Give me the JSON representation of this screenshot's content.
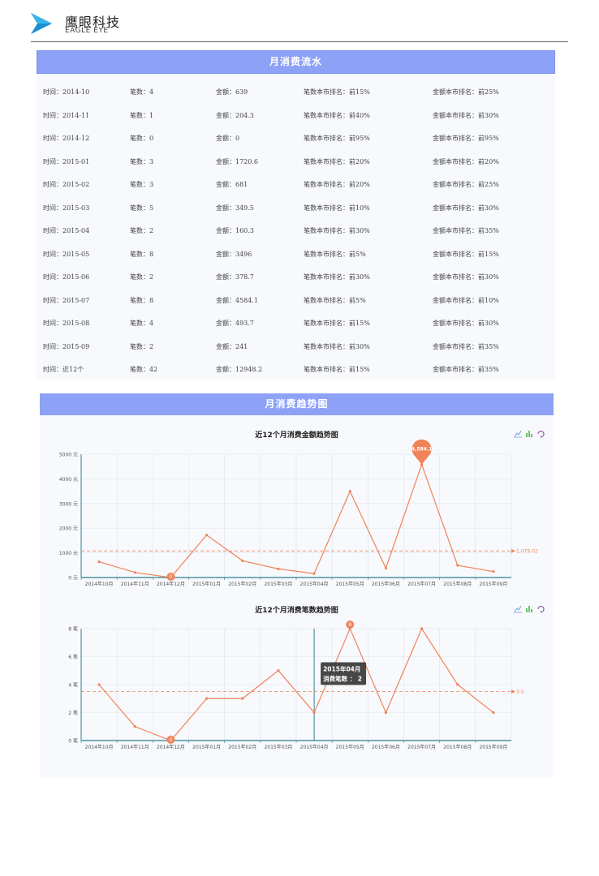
{
  "brand": {
    "name_cn": "鹰眼科技",
    "name_en": "EAGLE EYE"
  },
  "flow": {
    "title": "月消费流水",
    "rows": [
      {
        "time": "时间：2014-10",
        "count": "笔数：4",
        "amount": "金额：639",
        "count_rank": "笔数本市排名：前15%",
        "amount_rank": "金额本市排名：前25%"
      },
      {
        "time": "时间：2014-11",
        "count": "笔数：1",
        "amount": "金额：204.3",
        "count_rank": "笔数本市排名：前40%",
        "amount_rank": "金额本市排名：前30%"
      },
      {
        "time": "时间：2014-12",
        "count": "笔数：0",
        "amount": "金额：0",
        "count_rank": "笔数本市排名：前95%",
        "amount_rank": "金额本市排名：前95%"
      },
      {
        "time": "时间：2015-01",
        "count": "笔数：3",
        "amount": "金额：1720.6",
        "count_rank": "笔数本市排名：前20%",
        "amount_rank": "金额本市排名：前20%"
      },
      {
        "time": "时间：2015-02",
        "count": "笔数：3",
        "amount": "金额：681",
        "count_rank": "笔数本市排名：前20%",
        "amount_rank": "金额本市排名：前25%"
      },
      {
        "time": "时间：2015-03",
        "count": "笔数：5",
        "amount": "金额：349.5",
        "count_rank": "笔数本市排名：前10%",
        "amount_rank": "金额本市排名：前30%"
      },
      {
        "time": "时间：2015-04",
        "count": "笔数：2",
        "amount": "金额：160.3",
        "count_rank": "笔数本市排名：前30%",
        "amount_rank": "金额本市排名：前35%"
      },
      {
        "time": "时间：2015-05",
        "count": "笔数：8",
        "amount": "金额：3496",
        "count_rank": "笔数本市排名：前5%",
        "amount_rank": "金额本市排名：前15%"
      },
      {
        "time": "时间：2015-06",
        "count": "笔数：2",
        "amount": "金额：378.7",
        "count_rank": "笔数本市排名：前30%",
        "amount_rank": "金额本市排名：前30%"
      },
      {
        "time": "时间：2015-07",
        "count": "笔数：8",
        "amount": "金额：4584.1",
        "count_rank": "笔数本市排名：前5%",
        "amount_rank": "金额本市排名：前10%"
      },
      {
        "time": "时间：2015-08",
        "count": "笔数：4",
        "amount": "金额：493.7",
        "count_rank": "笔数本市排名：前15%",
        "amount_rank": "金额本市排名：前30%"
      },
      {
        "time": "时间：2015-09",
        "count": "笔数：2",
        "amount": "金额：241",
        "count_rank": "笔数本市排名：前30%",
        "amount_rank": "金额本市排名：前35%"
      },
      {
        "time": "时间：近12个",
        "count": "笔数：42",
        "amount": "金额：12948.2",
        "count_rank": "笔数本市排名：前15%",
        "amount_rank": "金额本市排名：前35%"
      }
    ]
  },
  "trend": {
    "title": "月消费趋势图"
  },
  "colors": {
    "accent": "#8da2f7",
    "series": "#f0835a",
    "axis": "#2f7f8f",
    "tooltip_bg": "#333333"
  },
  "toolbox_icons": [
    "line-chart-icon",
    "bar-chart-icon",
    "refresh-icon"
  ],
  "chart_data": [
    {
      "type": "line",
      "title": "近12个月消费金额趋势图",
      "categories": [
        "2014年10月",
        "2014年11月",
        "2014年12月",
        "2015年01月",
        "2015年02月",
        "2015年03月",
        "2015年04月",
        "2015年05月",
        "2015年06月",
        "2015年07月",
        "2015年08月",
        "2015年09月"
      ],
      "values": [
        639,
        204.3,
        0,
        1720.6,
        681,
        349.5,
        160.3,
        3496,
        378.7,
        4584.1,
        493.7,
        241
      ],
      "ylim": [
        0,
        5000
      ],
      "yticks": [
        "0 元",
        "1000 元",
        "2000 元",
        "3000 元",
        "4000 元",
        "5000 元"
      ],
      "markers": {
        "max_label": "4,584.1",
        "min_label": "0",
        "avg_value": 1079.02,
        "avg_label": "1,079.02"
      },
      "grid": true
    },
    {
      "type": "line",
      "title": "近12个月消费笔数趋势图",
      "categories": [
        "2014年10月",
        "2014年11月",
        "2014年12月",
        "2015年01月",
        "2015年02月",
        "2015年03月",
        "2015年04月",
        "2015年05月",
        "2015年06月",
        "2015年07月",
        "2015年08月",
        "2015年09月"
      ],
      "values": [
        4,
        1,
        0,
        3,
        3,
        5,
        2,
        8,
        2,
        8,
        4,
        2
      ],
      "ylim": [
        0,
        8
      ],
      "yticks": [
        "0 笔",
        "2 笔",
        "4 笔",
        "6 笔",
        "8 笔"
      ],
      "markers": {
        "max_label": "8",
        "min_label": "0",
        "avg_value": 3.5,
        "avg_label": "3.5"
      },
      "tooltip": {
        "category": "2015年04月",
        "line1": "2015年04月",
        "line2": "消费笔数 ： 2"
      },
      "grid": true
    }
  ]
}
